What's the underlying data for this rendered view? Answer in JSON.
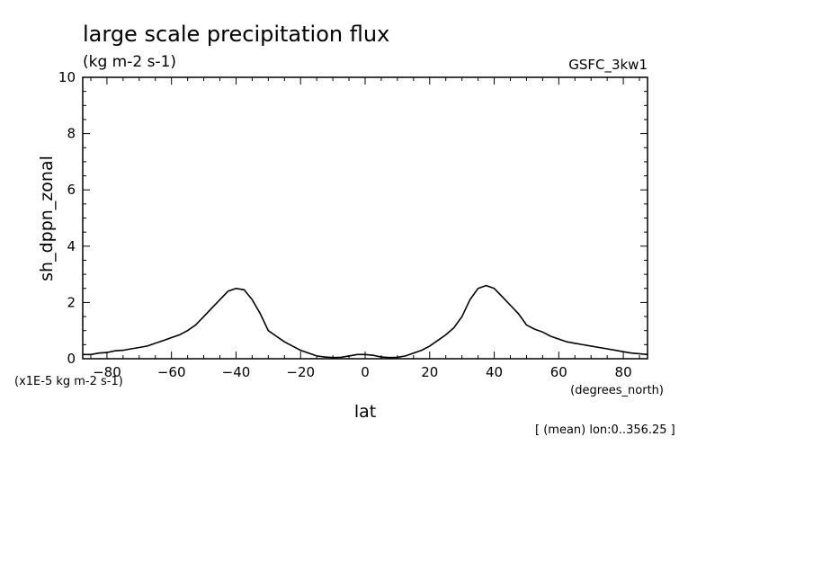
{
  "chart_data": {
    "type": "line",
    "title": "large scale precipitation flux",
    "subtitle": "(kg m-2 s-1)",
    "model_label": "GSFC_3kw1",
    "xlabel": "lat",
    "x_units": "(degrees_north)",
    "ylabel": "sh_dppn_zonal",
    "y_scale_note": "(x1E-5 kg m-2 s-1)",
    "footnote": "[ (mean) lon:0..356.25 ]",
    "xlim": [
      -87.5,
      87.5
    ],
    "ylim": [
      0,
      10
    ],
    "x_ticks": [
      -80,
      -60,
      -40,
      -20,
      0,
      20,
      40,
      60,
      80
    ],
    "y_ticks": [
      0,
      2,
      4,
      6,
      8,
      10
    ],
    "grid": false,
    "series": [
      {
        "x": [
          -87.5,
          -85,
          -82.5,
          -80,
          -77.5,
          -75,
          -72.5,
          -70,
          -67.5,
          -65,
          -62.5,
          -60,
          -57.5,
          -55,
          -52.5,
          -50,
          -47.5,
          -45,
          -42.5,
          -40,
          -37.5,
          -35,
          -32.5,
          -30,
          -27.5,
          -25,
          -22.5,
          -20,
          -17.5,
          -15,
          -12.5,
          -10,
          -7.5,
          -5,
          -2.5,
          0,
          2.5,
          5,
          7.5,
          10,
          12.5,
          15,
          17.5,
          20,
          22.5,
          25,
          27.5,
          30,
          32.5,
          35,
          37.5,
          40,
          42.5,
          45,
          47.5,
          50,
          52.5,
          55,
          57.5,
          60,
          62.5,
          65,
          67.5,
          70,
          72.5,
          75,
          77.5,
          80,
          82.5,
          85,
          87.5
        ],
        "y": [
          0.15,
          0.15,
          0.2,
          0.22,
          0.28,
          0.3,
          0.35,
          0.4,
          0.45,
          0.55,
          0.65,
          0.75,
          0.85,
          1.0,
          1.2,
          1.5,
          1.8,
          2.1,
          2.4,
          2.5,
          2.45,
          2.1,
          1.6,
          1.0,
          0.8,
          0.6,
          0.45,
          0.3,
          0.2,
          0.1,
          0.06,
          0.04,
          0.05,
          0.1,
          0.15,
          0.15,
          0.12,
          0.06,
          0.04,
          0.05,
          0.1,
          0.2,
          0.3,
          0.45,
          0.65,
          0.85,
          1.1,
          1.5,
          2.1,
          2.5,
          2.6,
          2.5,
          2.2,
          1.9,
          1.6,
          1.2,
          1.05,
          0.95,
          0.8,
          0.7,
          0.6,
          0.55,
          0.5,
          0.45,
          0.4,
          0.35,
          0.3,
          0.25,
          0.2,
          0.18,
          0.15
        ]
      }
    ]
  }
}
